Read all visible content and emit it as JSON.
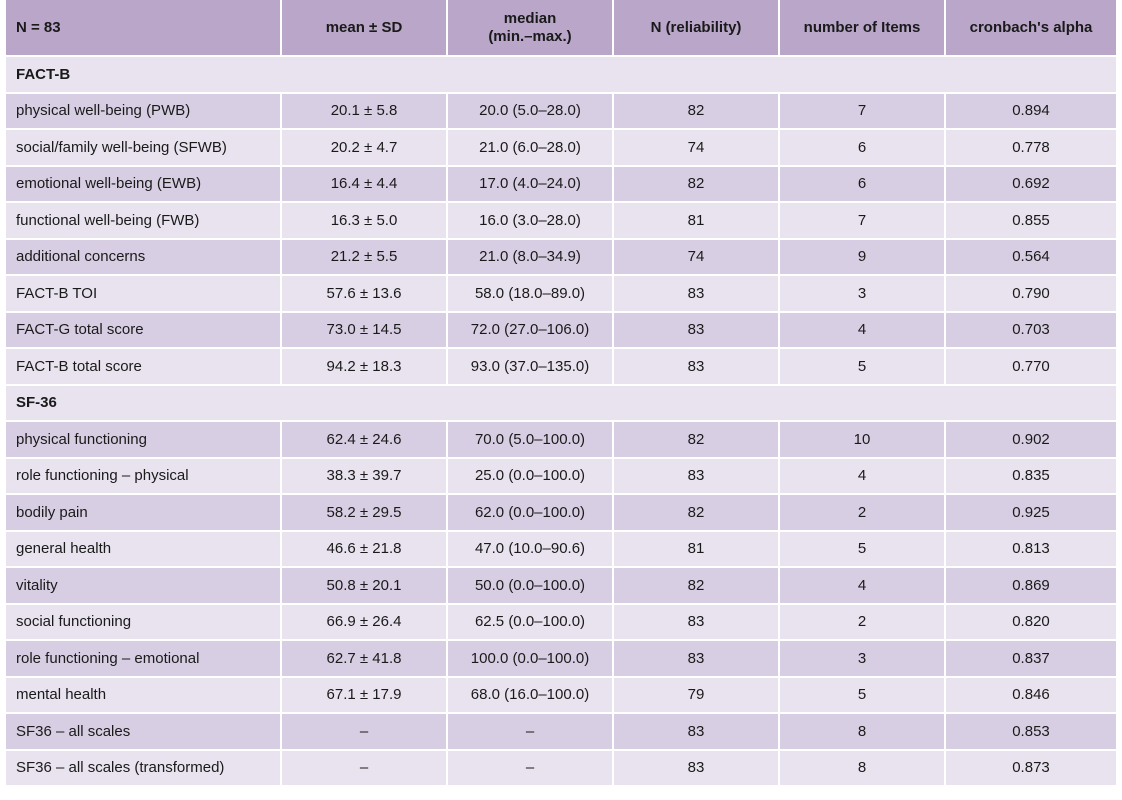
{
  "header": {
    "col0": "N = 83",
    "col1": "mean ± SD",
    "col2_line1": "median",
    "col2_line2": "(min.–max.)",
    "col3": "N (reliability)",
    "col4": "number of Items",
    "col5": "cronbach's alpha"
  },
  "sections": [
    {
      "title": "FACT-B",
      "rows": [
        {
          "label": "physical well-being (PWB)",
          "mean_sd": "20.1 ± 5.8",
          "median": "20.0 (5.0–28.0)",
          "n": "82",
          "items": "7",
          "alpha": "0.894"
        },
        {
          "label": "social/family well-being (SFWB)",
          "mean_sd": "20.2 ± 4.7",
          "median": "21.0 (6.0–28.0)",
          "n": "74",
          "items": "6",
          "alpha": "0.778"
        },
        {
          "label": "emotional well-being (EWB)",
          "mean_sd": "16.4 ± 4.4",
          "median": "17.0 (4.0–24.0)",
          "n": "82",
          "items": "6",
          "alpha": "0.692"
        },
        {
          "label": "functional well-being (FWB)",
          "mean_sd": "16.3 ± 5.0",
          "median": "16.0 (3.0–28.0)",
          "n": "81",
          "items": "7",
          "alpha": "0.855"
        },
        {
          "label": "additional concerns",
          "mean_sd": "21.2 ± 5.5",
          "median": "21.0 (8.0–34.9)",
          "n": "74",
          "items": "9",
          "alpha": "0.564"
        },
        {
          "label": "FACT-B TOI",
          "mean_sd": "57.6 ± 13.6",
          "median": "58.0 (18.0–89.0)",
          "n": "83",
          "items": "3",
          "alpha": "0.790"
        },
        {
          "label": "FACT-G total score",
          "mean_sd": "73.0 ± 14.5",
          "median": "72.0 (27.0–106.0)",
          "n": "83",
          "items": "4",
          "alpha": "0.703"
        },
        {
          "label": "FACT-B total score",
          "mean_sd": "94.2 ± 18.3",
          "median": "93.0 (37.0–135.0)",
          "n": "83",
          "items": "5",
          "alpha": "0.770"
        }
      ]
    },
    {
      "title": "SF-36",
      "rows": [
        {
          "label": "physical functioning",
          "mean_sd": "62.4 ± 24.6",
          "median": "70.0 (5.0–100.0)",
          "n": "82",
          "items": "10",
          "alpha": "0.902"
        },
        {
          "label": "role functioning – physical",
          "mean_sd": "38.3 ± 39.7",
          "median": "25.0 (0.0–100.0)",
          "n": "83",
          "items": "4",
          "alpha": "0.835"
        },
        {
          "label": "bodily pain",
          "mean_sd": "58.2 ± 29.5",
          "median": "62.0 (0.0–100.0)",
          "n": "82",
          "items": "2",
          "alpha": "0.925"
        },
        {
          "label": "general health",
          "mean_sd": "46.6 ± 21.8",
          "median": "47.0 (10.0–90.6)",
          "n": "81",
          "items": "5",
          "alpha": "0.813"
        },
        {
          "label": "vitality",
          "mean_sd": "50.8 ± 20.1",
          "median": "50.0 (0.0–100.0)",
          "n": "82",
          "items": "4",
          "alpha": "0.869"
        },
        {
          "label": "social functioning",
          "mean_sd": "66.9 ± 26.4",
          "median": "62.5 (0.0–100.0)",
          "n": "83",
          "items": "2",
          "alpha": "0.820"
        },
        {
          "label": "role functioning – emotional",
          "mean_sd": "62.7 ± 41.8",
          "median": "100.0 (0.0–100.0)",
          "n": "83",
          "items": "3",
          "alpha": "0.837"
        },
        {
          "label": "mental health",
          "mean_sd": "67.1 ± 17.9",
          "median": "68.0 (16.0–100.0)",
          "n": "79",
          "items": "5",
          "alpha": "0.846"
        },
        {
          "label": "SF36 – all scales",
          "mean_sd": "–",
          "median": "–",
          "n": "83",
          "items": "8",
          "alpha": "0.853"
        },
        {
          "label": "SF36 – all scales (transformed)",
          "mean_sd": "–",
          "median": "–",
          "n": "83",
          "items": "8",
          "alpha": "0.873"
        }
      ]
    }
  ]
}
